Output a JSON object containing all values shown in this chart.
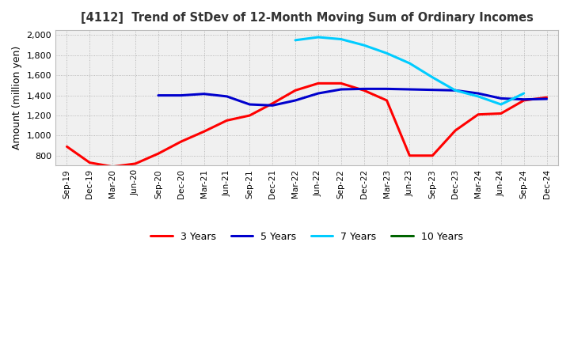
{
  "title": "[4112]  Trend of StDev of 12-Month Moving Sum of Ordinary Incomes",
  "ylabel": "Amount (million yen)",
  "ylim": [
    700,
    2050
  ],
  "yticks": [
    800,
    1000,
    1200,
    1400,
    1600,
    1800,
    2000
  ],
  "legend_labels": [
    "3 Years",
    "5 Years",
    "7 Years",
    "10 Years"
  ],
  "legend_colors": [
    "#ff0000",
    "#0000cd",
    "#00ccff",
    "#006400"
  ],
  "background_color": "#f0f0f0",
  "grid_color": "#aaaaaa",
  "x_labels": [
    "Sep-19",
    "Dec-19",
    "Mar-20",
    "Jun-20",
    "Sep-20",
    "Dec-20",
    "Mar-21",
    "Jun-21",
    "Sep-21",
    "Dec-21",
    "Mar-22",
    "Jun-22",
    "Sep-22",
    "Dec-22",
    "Mar-23",
    "Jun-23",
    "Sep-23",
    "Dec-23",
    "Mar-24",
    "Jun-24",
    "Sep-24",
    "Dec-24"
  ],
  "series_3y": [
    890,
    730,
    690,
    720,
    820,
    940,
    1040,
    1150,
    1200,
    1320,
    1450,
    1520,
    1520,
    1450,
    1350,
    800,
    800,
    1050,
    1210,
    1220,
    1350,
    1380
  ],
  "series_5y": [
    null,
    null,
    null,
    null,
    1400,
    1400,
    1415,
    1390,
    1310,
    1300,
    1350,
    1420,
    1460,
    1465,
    1465,
    1460,
    1455,
    1450,
    1420,
    1370,
    1360,
    1365
  ],
  "series_7y": [
    null,
    null,
    null,
    null,
    null,
    null,
    null,
    null,
    null,
    null,
    1950,
    1980,
    1960,
    1900,
    1820,
    1720,
    1580,
    1450,
    1390,
    1310,
    1420,
    null
  ],
  "series_10y": [
    null,
    null,
    null,
    null,
    null,
    null,
    null,
    null,
    null,
    null,
    null,
    null,
    null,
    null,
    null,
    null,
    null,
    null,
    null,
    null,
    null,
    null
  ]
}
